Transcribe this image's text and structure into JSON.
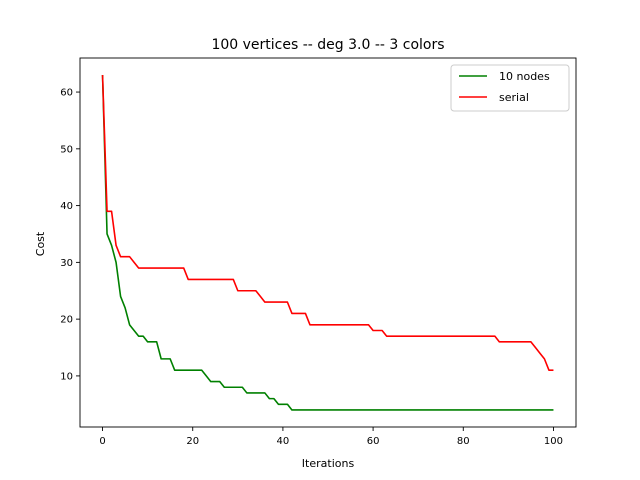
{
  "chart_data": {
    "type": "line",
    "title": "100 vertices -- deg 3.0 -- 3 colors",
    "xlabel": "Iterations",
    "ylabel": "Cost",
    "xlim": [
      -5,
      105
    ],
    "ylim": [
      1,
      66
    ],
    "xticks": [
      0,
      20,
      40,
      60,
      80,
      100
    ],
    "yticks": [
      10,
      20,
      30,
      40,
      50,
      60
    ],
    "grid": false,
    "legend_position": "top-right",
    "series": [
      {
        "name": "10 nodes",
        "color": "#008000",
        "x": [
          0,
          1,
          2,
          3,
          4,
          5,
          6,
          7,
          8,
          9,
          10,
          11,
          12,
          13,
          14,
          15,
          16,
          17,
          18,
          19,
          20,
          21,
          22,
          23,
          24,
          25,
          26,
          27,
          28,
          29,
          30,
          31,
          32,
          33,
          34,
          35,
          36,
          37,
          38,
          39,
          40,
          41,
          42,
          50,
          60,
          70,
          80,
          90,
          100
        ],
        "y": [
          63,
          35,
          33,
          30,
          24,
          22,
          19,
          18,
          17,
          17,
          16,
          16,
          16,
          13,
          13,
          13,
          11,
          11,
          11,
          11,
          11,
          11,
          11,
          10,
          9,
          9,
          9,
          8,
          8,
          8,
          8,
          8,
          7,
          7,
          7,
          7,
          7,
          6,
          6,
          5,
          5,
          5,
          4,
          4,
          4,
          4,
          4,
          4,
          4
        ]
      },
      {
        "name": "serial",
        "color": "#ff0000",
        "x": [
          0,
          1,
          2,
          3,
          4,
          5,
          6,
          7,
          8,
          9,
          10,
          11,
          12,
          13,
          14,
          15,
          16,
          17,
          18,
          19,
          20,
          21,
          22,
          23,
          24,
          25,
          26,
          27,
          28,
          29,
          30,
          31,
          32,
          33,
          34,
          35,
          36,
          37,
          38,
          39,
          40,
          41,
          42,
          43,
          44,
          45,
          46,
          47,
          48,
          49,
          50,
          51,
          52,
          53,
          54,
          55,
          56,
          57,
          58,
          59,
          60,
          61,
          62,
          63,
          64,
          65,
          70,
          75,
          80,
          85,
          86,
          87,
          88,
          89,
          90,
          91,
          92,
          93,
          94,
          95,
          96,
          97,
          98,
          99,
          100
        ],
        "y": [
          63,
          39,
          39,
          33,
          31,
          31,
          31,
          30,
          29,
          29,
          29,
          29,
          29,
          29,
          29,
          29,
          29,
          29,
          29,
          27,
          27,
          27,
          27,
          27,
          27,
          27,
          27,
          27,
          27,
          27,
          25,
          25,
          25,
          25,
          25,
          24,
          23,
          23,
          23,
          23,
          23,
          23,
          21,
          21,
          21,
          21,
          19,
          19,
          19,
          19,
          19,
          19,
          19,
          19,
          19,
          19,
          19,
          19,
          19,
          19,
          18,
          18,
          18,
          17,
          17,
          17,
          17,
          17,
          17,
          17,
          17,
          17,
          16,
          16,
          16,
          16,
          16,
          16,
          16,
          16,
          15,
          14,
          13,
          11,
          11
        ]
      }
    ]
  }
}
